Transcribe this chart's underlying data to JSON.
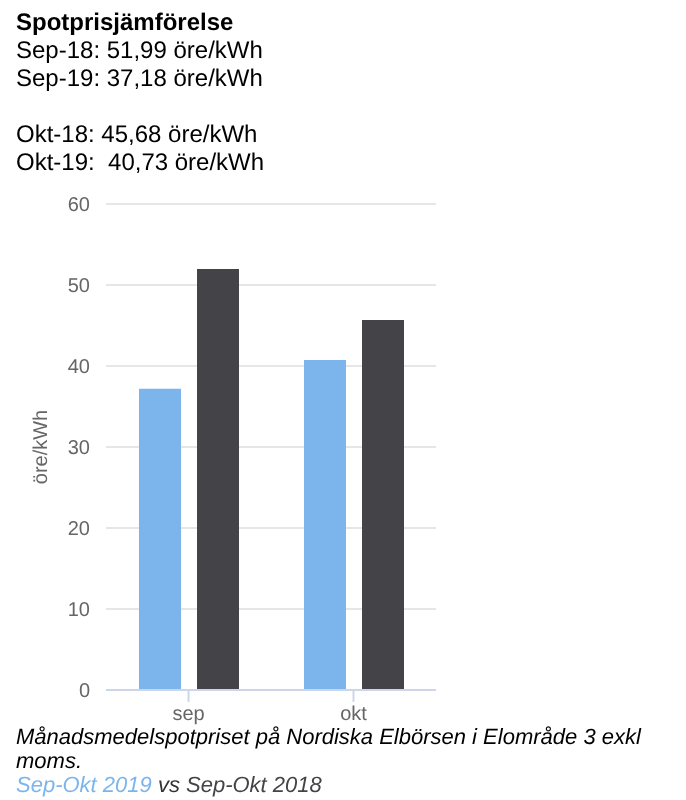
{
  "chart_data": {
    "type": "bar",
    "title": "Spotprisjämförelse",
    "subtitle": "Sep-18: 51,99 öre/kWh\nSep-19: 37,18 öre/kWh\n\nOkt-18: 45,68 öre/kWh\nOkt-19:  40,73 öre/kWh",
    "ylabel": "öre/kWh",
    "categories": [
      "sep",
      "okt"
    ],
    "series": [
      {
        "name": "Sep-Okt 2019",
        "color": "#7cb5ec",
        "values": [
          37.18,
          40.73
        ]
      },
      {
        "name": "Sep-Okt 2018",
        "color": "#434348",
        "values": [
          51.99,
          45.68
        ]
      }
    ],
    "ylim": [
      0,
      60
    ],
    "yticks": [
      0,
      10,
      20,
      30,
      40,
      50,
      60
    ],
    "grid": "y",
    "legend": "bottom",
    "annotations": [
      "Månadsmedelspotpriset på Nordiska Elbörsen i Elområde 3 exkl moms.",
      "vs"
    ]
  }
}
